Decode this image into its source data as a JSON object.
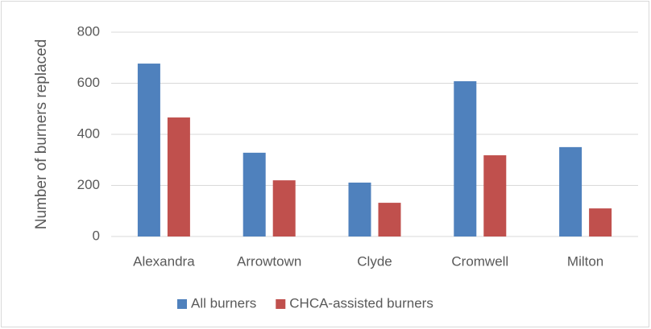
{
  "chart_data": {
    "type": "bar",
    "y_axis_label": "Number of burners replaced",
    "categories": [
      "Alexandra",
      "Arrowtown",
      "Clyde",
      "Cromwell",
      "Milton"
    ],
    "series": [
      {
        "name": "All burners",
        "color": "#4f81bd",
        "values": [
          677,
          328,
          211,
          608,
          350
        ]
      },
      {
        "name": "CHCA-assisted burners",
        "color": "#c0504d",
        "values": [
          466,
          220,
          132,
          318,
          110
        ]
      }
    ],
    "ylim": [
      0,
      800
    ],
    "yticks": [
      0,
      200,
      400,
      600,
      800
    ],
    "grid": true,
    "legend": "bottom"
  }
}
